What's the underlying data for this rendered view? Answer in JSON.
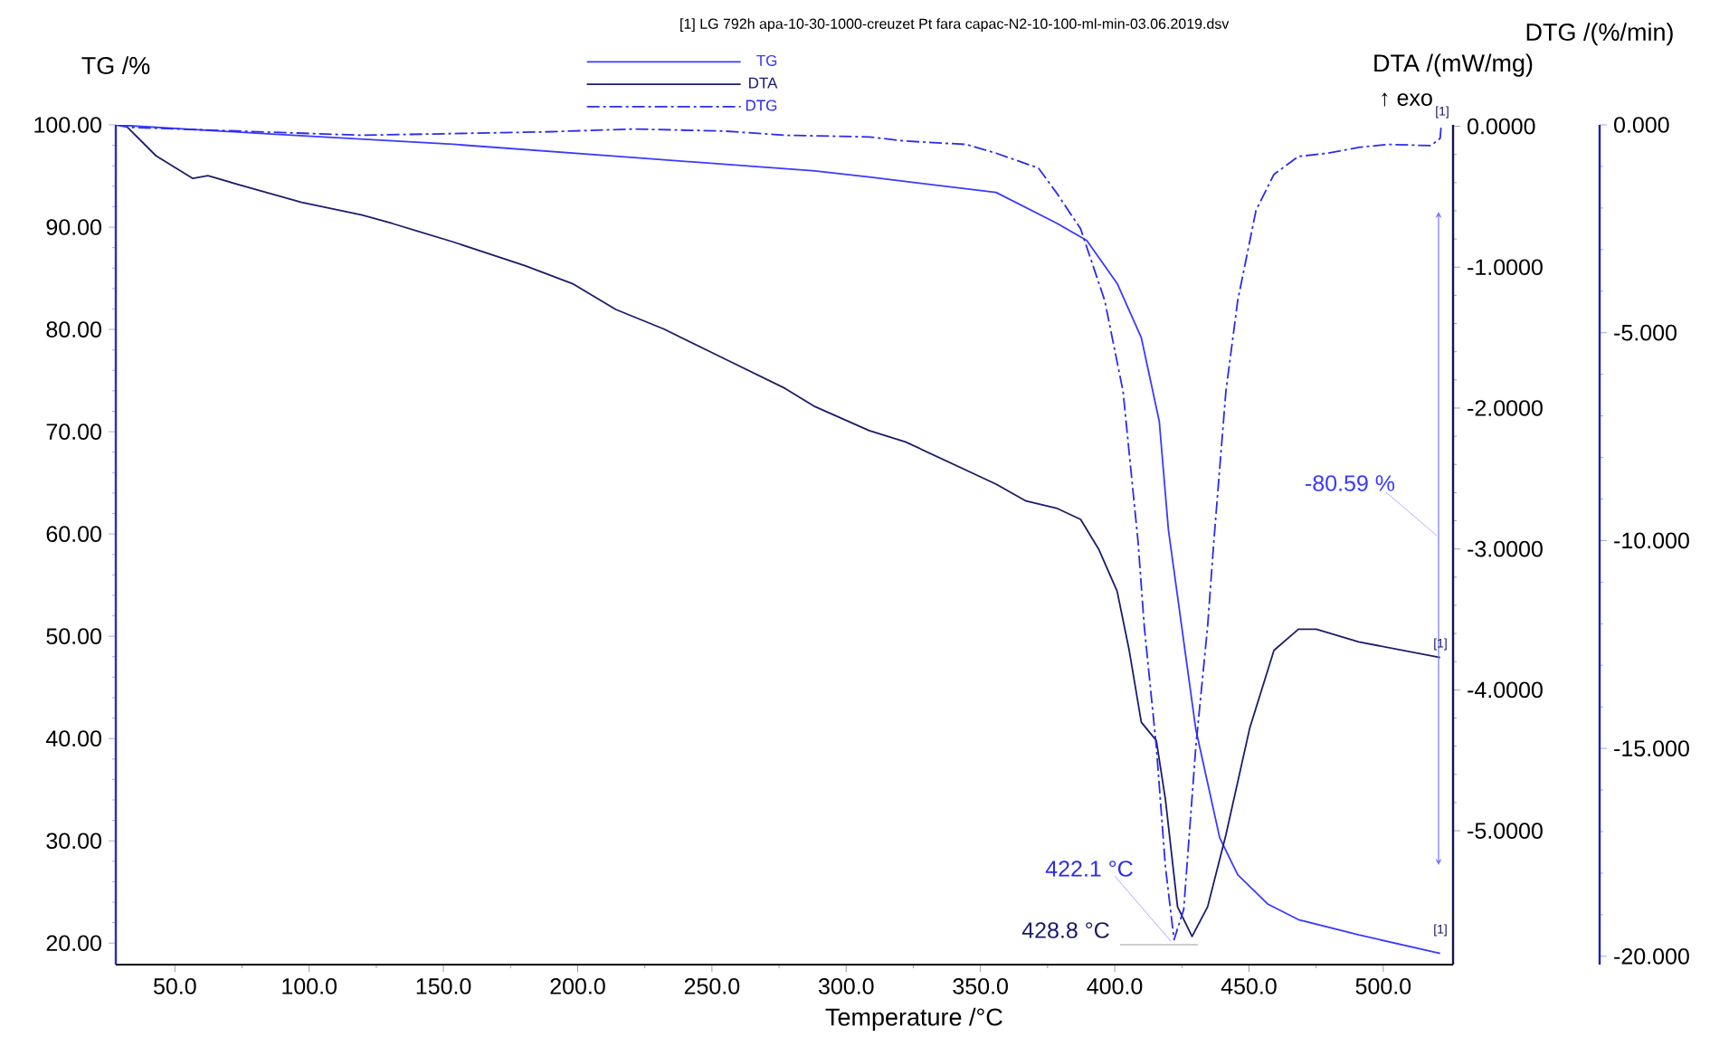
{
  "chart_data": {
    "type": "line",
    "title": "[1] LG 792h apa-10-30-1000-creuzet Pt fara capac-N2-10-100-ml-min-03.06.2019.dsv",
    "xlabel": "Temperature /°C",
    "ylabel": "TG /%",
    "y2label": "DTA /(mW/mg)",
    "y3label": "DTG /(%/min)",
    "xlim": [
      28,
      526
    ],
    "xticks": [
      {
        "value": 50,
        "label": "50.0"
      },
      {
        "value": 100,
        "label": "100.0"
      },
      {
        "value": 150,
        "label": "150.0"
      },
      {
        "value": 200,
        "label": "200.0"
      },
      {
        "value": 250,
        "label": "250.0"
      },
      {
        "value": 300,
        "label": "300.0"
      },
      {
        "value": 350,
        "label": "350.0"
      },
      {
        "value": 400,
        "label": "400.0"
      },
      {
        "value": 450,
        "label": "450.0"
      },
      {
        "value": 500,
        "label": "500.0"
      }
    ],
    "ylim": [
      17.9,
      100
    ],
    "yticks": [
      {
        "value": 20,
        "label": "20.00"
      },
      {
        "value": 30,
        "label": "30.00"
      },
      {
        "value": 40,
        "label": "40.00"
      },
      {
        "value": 50,
        "label": "50.00"
      },
      {
        "value": 60,
        "label": "60.00"
      },
      {
        "value": 70,
        "label": "70.00"
      },
      {
        "value": 80,
        "label": "80.00"
      },
      {
        "value": 90,
        "label": "90.00"
      },
      {
        "value": 100,
        "label": "100.00"
      }
    ],
    "y2lim": [
      -5.95,
      0.01
    ],
    "y2ticks": [
      {
        "value": -5,
        "label": "-5.0000"
      },
      {
        "value": -4,
        "label": "-4.0000"
      },
      {
        "value": -3,
        "label": "-3.0000"
      },
      {
        "value": -2,
        "label": "-2.0000"
      },
      {
        "value": -1,
        "label": "-1.0000"
      },
      {
        "value": 0,
        "label": "0.0000"
      }
    ],
    "y3lim": [
      -20.2,
      0
    ],
    "y3ticks": [
      {
        "value": -20,
        "label": "-20.000"
      },
      {
        "value": -15,
        "label": "-15.000"
      },
      {
        "value": -10,
        "label": "-10.000"
      },
      {
        "value": -5,
        "label": "-5.000"
      },
      {
        "value": 0,
        "label": "0.000"
      }
    ],
    "legend": "top",
    "marker": "none",
    "series": [
      {
        "name": "TG",
        "color": "#3a3aff",
        "axis": "y",
        "line_style": "solid",
        "x": [
          28,
          86,
          153.5,
          221,
          288.4,
          308.6,
          355.8,
          378.3,
          389.6,
          400.9,
          409.9,
          416.6,
          420,
          430.2,
          439.1,
          445.8,
          457.1,
          468.4,
          490.9,
          521.2
        ],
        "values": [
          100,
          99.1,
          98.1,
          96.8,
          95.5,
          94.9,
          93.4,
          90.4,
          88.7,
          84.5,
          79.2,
          71.0,
          60.4,
          40.9,
          30.3,
          26.7,
          23.8,
          22.3,
          20.8,
          19.0
        ]
      },
      {
        "name": "DTA",
        "color": "#1c1c6b",
        "axis": "y2",
        "line_style": "solid",
        "x": [
          32,
          43,
          56.7,
          62.3,
          74.7,
          97.2,
          119.7,
          131,
          153.5,
          180.4,
          198.4,
          214.2,
          232.2,
          254.7,
          277.2,
          288.4,
          308.6,
          322.1,
          355.8,
          367,
          378.3,
          387.3,
          394,
          400.9,
          405.4,
          409.9,
          415.5,
          418.9,
          423.4,
          428.8,
          434.6,
          441.4,
          450.3,
          459.3,
          468.4,
          475.1,
          490.9,
          521.2
        ],
        "values": [
          0,
          -0.21,
          -0.37,
          -0.35,
          -0.42,
          -0.54,
          -0.63,
          -0.69,
          -0.82,
          -0.99,
          -1.12,
          -1.3,
          -1.44,
          -1.65,
          -1.86,
          -1.99,
          -2.16,
          -2.24,
          -2.54,
          -2.66,
          -2.71,
          -2.79,
          -3.0,
          -3.3,
          -3.72,
          -4.23,
          -4.36,
          -4.78,
          -5.54,
          -5.75,
          -5.54,
          -5.03,
          -4.27,
          -3.72,
          -3.57,
          -3.57,
          -3.66,
          -3.77
        ]
      },
      {
        "name": "DTG",
        "color": "#2b2bef",
        "axis": "y3",
        "line_style": "dashed",
        "x": [
          28,
          33,
          119.7,
          187.2,
          221,
          254.7,
          277.2,
          308.6,
          322.1,
          344.6,
          355.8,
          371.6,
          378.3,
          387.3,
          396.3,
          403.1,
          408.7,
          411,
          415.5,
          418.9,
          422.1,
          425.7,
          430.2,
          434.6,
          436.9,
          441.4,
          445.8,
          452.6,
          459.3,
          468.4,
          479.6,
          490.9,
          502.1,
          517.8,
          521.2,
          521.6
        ],
        "values": [
          0,
          -0.06,
          -0.25,
          -0.17,
          -0.1,
          -0.15,
          -0.25,
          -0.29,
          -0.39,
          -0.47,
          -0.68,
          -1.04,
          -1.63,
          -2.5,
          -4.23,
          -6.41,
          -10.03,
          -12.06,
          -14.96,
          -17.86,
          -19.6,
          -18.87,
          -14.96,
          -12.06,
          -10.03,
          -6.41,
          -4.23,
          -2.06,
          -1.19,
          -0.76,
          -0.68,
          -0.54,
          -0.47,
          -0.5,
          -0.32,
          0
        ]
      }
    ],
    "annotations": [
      "-80.59 %",
      "422.1 °C",
      "428.8 °C",
      "[1]",
      "[1]",
      "[1]",
      "↑ exo"
    ]
  }
}
